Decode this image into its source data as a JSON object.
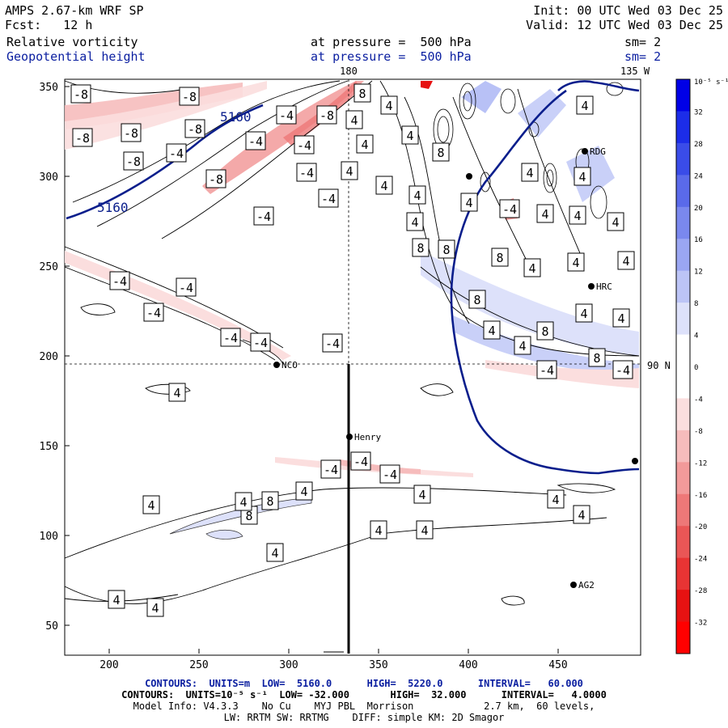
{
  "header": {
    "model": "AMPS 2.67-km WRF SP",
    "forecast": "Fcst:   12 h",
    "init": "Init: 00 UTC Wed 03 Dec 25",
    "valid": "Valid: 12 UTC Wed 03 Dec 25",
    "field1": "Relative vorticity",
    "field2": "Geopotential height",
    "pressure1": "at pressure =  500 hPa",
    "pressure2": "at pressure =  500 hPa",
    "sm1": "sm= 2",
    "sm2": "sm= 2"
  },
  "map": {
    "x_ticks": [
      "200",
      "250",
      "300",
      "350",
      "400",
      "450"
    ],
    "y_ticks": [
      "350",
      "300",
      "250",
      "200",
      "150",
      "100",
      "50"
    ],
    "meridian_180": "180",
    "meridian_135w": "135 W",
    "parallel_90n": "90 N",
    "height_label": "5160",
    "stations": [
      "NCO",
      "Henry",
      "HRC",
      "RDG",
      "AG2"
    ],
    "contour_labels_neg": [
      "-8",
      "-8",
      "-8",
      "-8",
      "-8",
      "-8",
      "-8",
      "-8",
      "-4",
      "-4",
      "-4",
      "-4",
      "-4",
      "-4",
      "-4",
      "-4",
      "-4",
      "-4",
      "-4",
      "-4",
      "-4",
      "-4",
      "-4",
      "-4",
      "-4",
      "-4",
      "-4"
    ],
    "contour_labels_pos": [
      "8",
      "8",
      "8",
      "8",
      "8",
      "8",
      "8",
      "8",
      "8",
      "8",
      "4",
      "4",
      "4",
      "4",
      "4",
      "4",
      "4",
      "4",
      "4",
      "4",
      "4",
      "4",
      "4",
      "4",
      "4",
      "4",
      "4",
      "4",
      "4",
      "4",
      "4",
      "4",
      "4",
      "4"
    ]
  },
  "colorbar": {
    "unit": "10⁻⁵ s⁻¹",
    "tick_labels": [
      "32",
      "28",
      "24",
      "20",
      "16",
      "12",
      "8",
      "4",
      "0",
      "-4",
      "-8",
      "-12",
      "-16",
      "-20",
      "-24",
      "-28",
      "-32"
    ],
    "colors": [
      "#0000e6",
      "#1c2de8",
      "#3a4ce8",
      "#5a6aea",
      "#7a88ee",
      "#9aa6f2",
      "#bcc4f6",
      "#dde1fa",
      "#ffffff",
      "#ffffff",
      "#fbdede",
      "#f6bcbc",
      "#f29a9a",
      "#ee7878",
      "#ea5656",
      "#e83434",
      "#e61212",
      "#ff0000"
    ]
  },
  "footer": {
    "line1": "CONTOURS:  UNITS=m  LOW=  5160.0      HIGH=  5220.0      INTERVAL=   60.000",
    "line2": "CONTOURS:  UNITS=10⁻⁵ s⁻¹  LOW= -32.000       HIGH=  32.000      INTERVAL=   4.0000",
    "line3": "Model Info: V4.3.3    No Cu    MYJ PBL  Morrison            2.7 km,  60 levels,",
    "line4": "LW: RRTM SW: RRTMG    DIFF: simple KM: 2D Smagor"
  }
}
